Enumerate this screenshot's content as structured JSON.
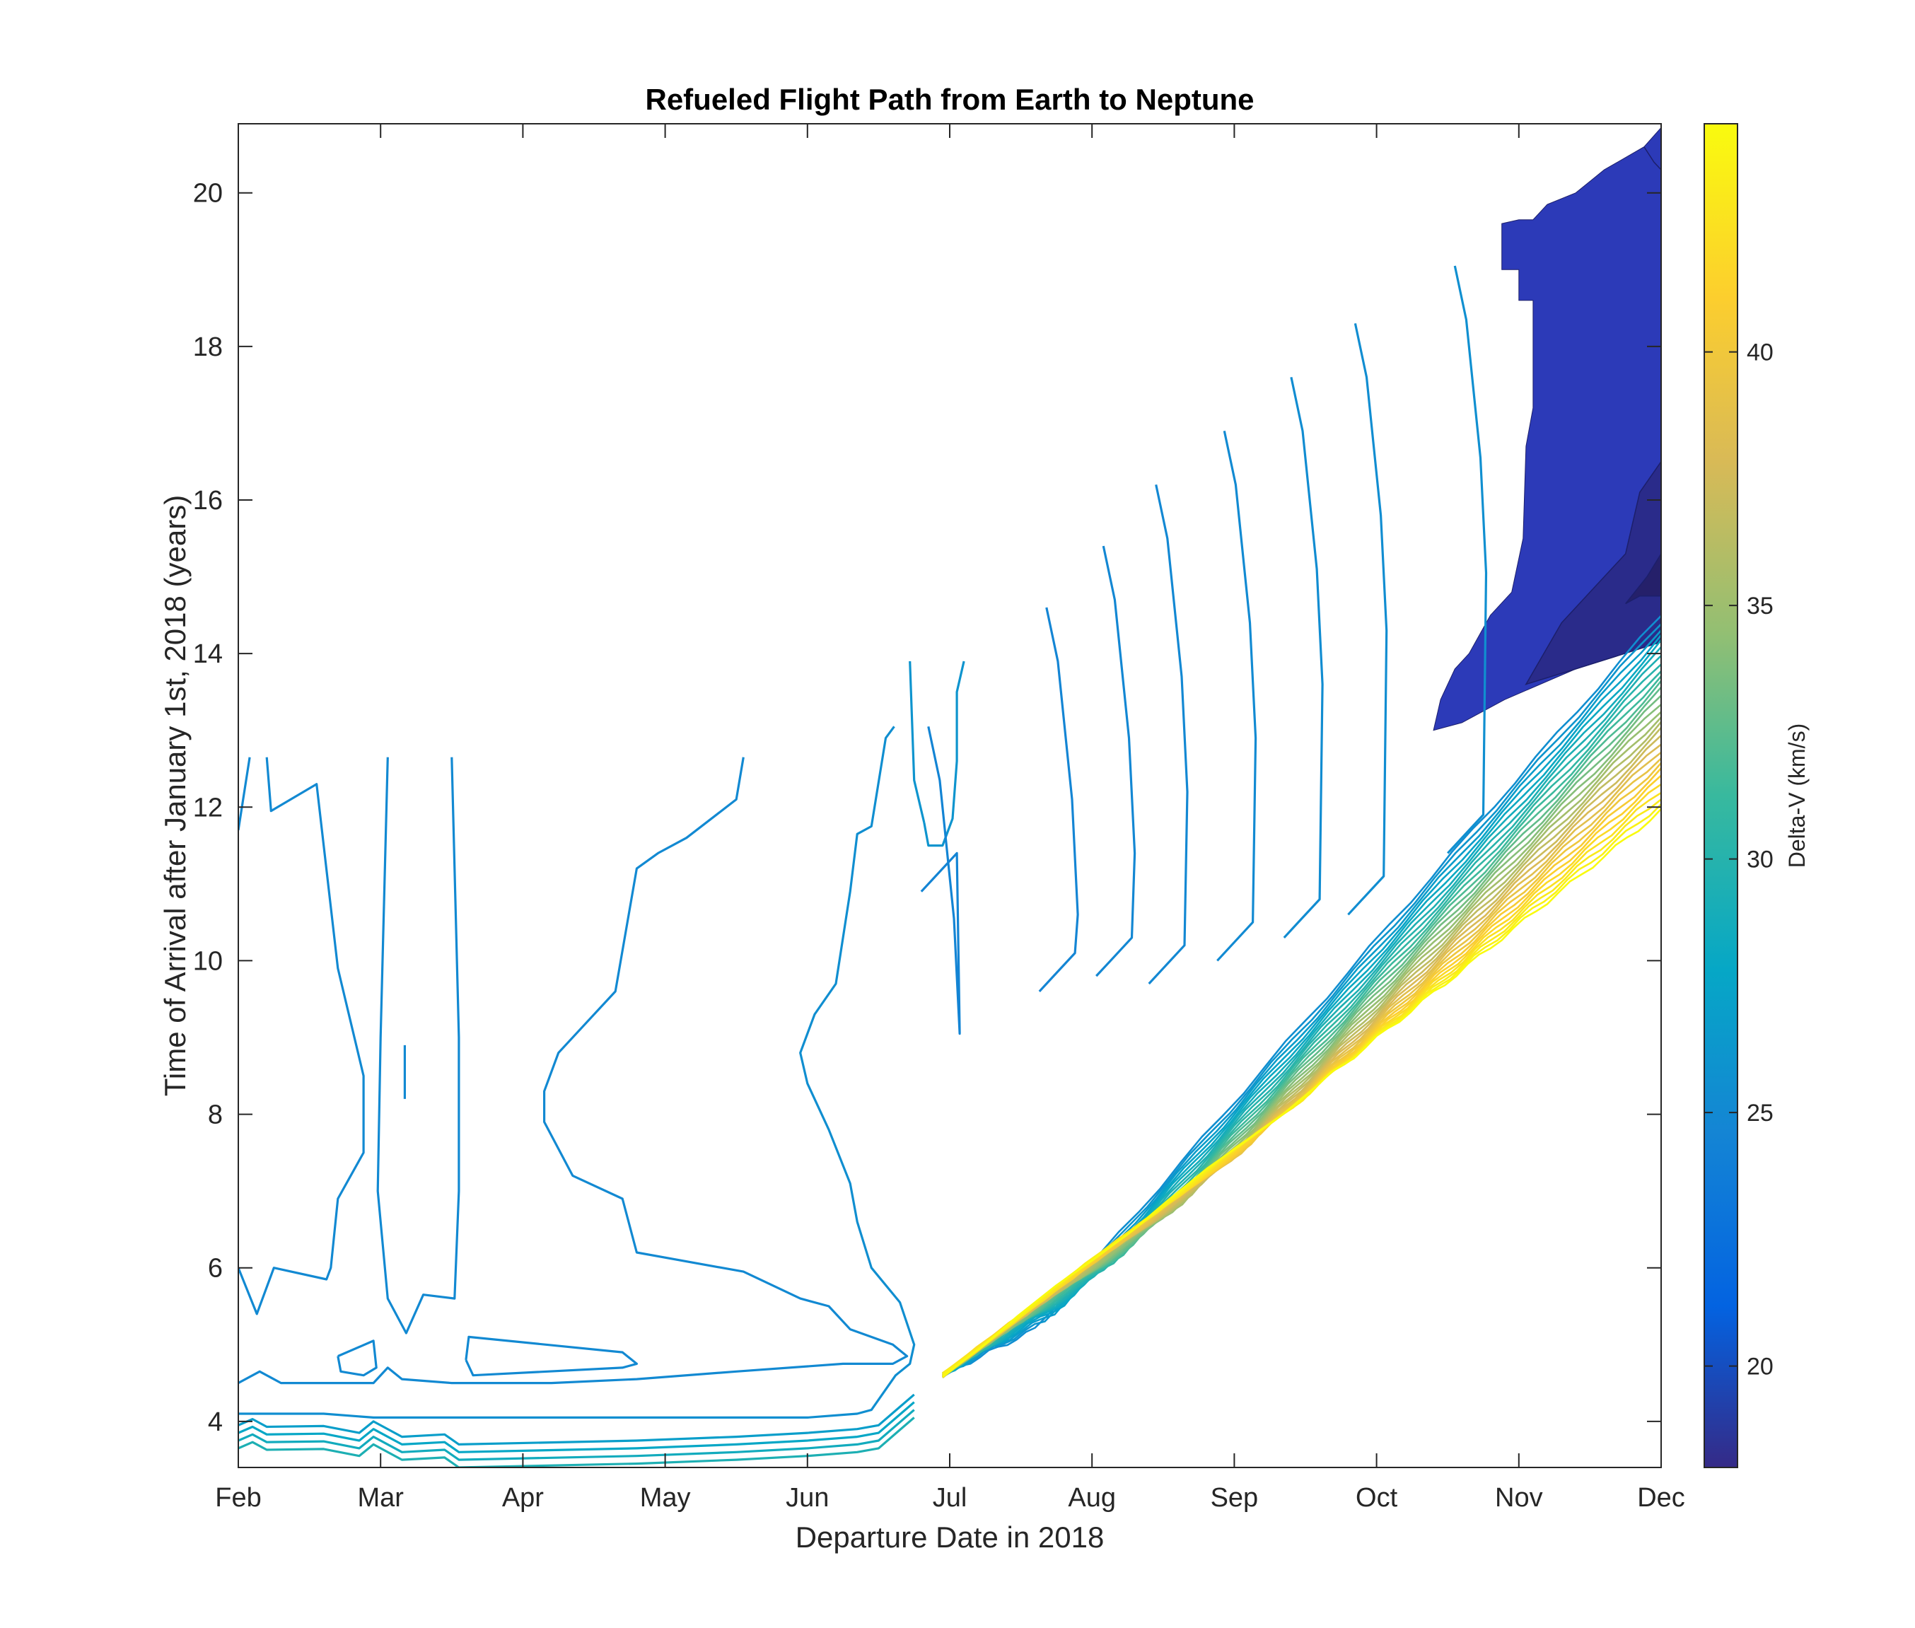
{
  "chart_data": {
    "type": "contour",
    "title": "Refueled Flight Path from Earth to Neptune",
    "xlabel": "Departure Date in 2018",
    "ylabel": "Time of Arrival after January 1st, 2018 (years)",
    "x_ticks": [
      "Feb",
      "Mar",
      "Apr",
      "May",
      "Jun",
      "Jul",
      "Aug",
      "Sep",
      "Oct",
      "Nov",
      "Dec"
    ],
    "y_ticks": [
      4,
      6,
      8,
      10,
      12,
      14,
      16,
      18,
      20
    ],
    "xlim": [
      "Feb",
      "Dec"
    ],
    "ylim": [
      3.4,
      20.9
    ],
    "colorbar": {
      "label": "Delta-V (km/s)",
      "ticks": [
        20,
        25,
        30,
        35,
        40
      ],
      "range": [
        18.0,
        44.5
      ],
      "colormap": "parula"
    },
    "contours": [
      {
        "level": 25.0,
        "points": [
          [
            0.0,
            11.7
          ],
          [
            0.08,
            12.65
          ]
        ]
      },
      {
        "level": 25.0,
        "points": [
          [
            0.2,
            12.65
          ],
          [
            0.23,
            11.95
          ],
          [
            0.55,
            12.3
          ],
          [
            0.7,
            9.9
          ],
          [
            0.88,
            8.5
          ],
          [
            0.88,
            7.5
          ],
          [
            0.7,
            6.9
          ],
          [
            0.65,
            6.0
          ],
          [
            0.62,
            5.85
          ],
          [
            0.25,
            6.0
          ],
          [
            0.13,
            5.4
          ],
          [
            0.0,
            6.0
          ]
        ]
      },
      {
        "level": 25.0,
        "points": [
          [
            1.05,
            12.65
          ],
          [
            1.0,
            9.0
          ],
          [
            0.98,
            7.0
          ],
          [
            1.05,
            5.6
          ],
          [
            1.18,
            5.15
          ],
          [
            1.3,
            5.65
          ],
          [
            1.52,
            5.6
          ],
          [
            1.55,
            7.0
          ],
          [
            1.55,
            9.0
          ],
          [
            1.5,
            12.65
          ]
        ]
      },
      {
        "level": 25.0,
        "points": [
          [
            1.17,
            8.9
          ],
          [
            1.17,
            8.2
          ]
        ]
      },
      {
        "level": 25.0,
        "points": [
          [
            0.7,
            4.85
          ],
          [
            0.95,
            5.05
          ],
          [
            0.97,
            4.7
          ],
          [
            0.88,
            4.6
          ],
          [
            0.72,
            4.65
          ],
          [
            0.7,
            4.85
          ]
        ]
      },
      {
        "level": 25.0,
        "points": [
          [
            1.6,
            4.8
          ],
          [
            1.62,
            5.1
          ],
          [
            2.7,
            4.9
          ],
          [
            2.8,
            4.75
          ],
          [
            2.7,
            4.7
          ],
          [
            1.65,
            4.6
          ],
          [
            1.6,
            4.8
          ]
        ]
      },
      {
        "level": 25.0,
        "points": [
          [
            3.55,
            12.65
          ],
          [
            3.5,
            12.1
          ],
          [
            3.15,
            11.6
          ],
          [
            2.95,
            11.4
          ],
          [
            2.8,
            11.2
          ],
          [
            2.65,
            9.6
          ],
          [
            2.45,
            9.2
          ],
          [
            2.25,
            8.8
          ],
          [
            2.15,
            8.3
          ],
          [
            2.15,
            7.9
          ],
          [
            2.35,
            7.2
          ],
          [
            2.7,
            6.9
          ],
          [
            2.8,
            6.2
          ],
          [
            3.55,
            5.95
          ],
          [
            3.95,
            5.6
          ],
          [
            4.15,
            5.5
          ],
          [
            4.3,
            5.2
          ],
          [
            4.6,
            5.0
          ],
          [
            4.7,
            4.85
          ],
          [
            4.6,
            4.75
          ],
          [
            4.25,
            4.75
          ],
          [
            3.5,
            4.65
          ],
          [
            2.8,
            4.55
          ],
          [
            2.2,
            4.5
          ],
          [
            1.5,
            4.5
          ],
          [
            1.15,
            4.55
          ],
          [
            1.05,
            4.7
          ],
          [
            0.95,
            4.5
          ],
          [
            0.6,
            4.5
          ],
          [
            0.3,
            4.5
          ],
          [
            0.15,
            4.65
          ],
          [
            0.0,
            4.5
          ]
        ]
      },
      {
        "level": 25.5,
        "points": [
          [
            0.0,
            4.1
          ],
          [
            0.6,
            4.1
          ],
          [
            0.95,
            4.05
          ],
          [
            1.5,
            4.05
          ],
          [
            2.2,
            4.05
          ],
          [
            2.8,
            4.05
          ],
          [
            3.5,
            4.05
          ],
          [
            4.0,
            4.05
          ],
          [
            4.35,
            4.1
          ],
          [
            4.45,
            4.15
          ],
          [
            4.62,
            4.6
          ],
          [
            4.72,
            4.75
          ],
          [
            4.75,
            5.0
          ],
          [
            4.65,
            5.55
          ],
          [
            4.45,
            6.0
          ],
          [
            4.35,
            6.6
          ],
          [
            4.3,
            7.1
          ],
          [
            4.15,
            7.8
          ],
          [
            4.0,
            8.4
          ],
          [
            3.95,
            8.8
          ],
          [
            4.05,
            9.3
          ],
          [
            4.2,
            9.7
          ],
          [
            4.3,
            10.9
          ],
          [
            4.35,
            11.65
          ],
          [
            4.45,
            11.75
          ],
          [
            4.55,
            12.9
          ],
          [
            4.61,
            13.05
          ]
        ]
      },
      {
        "level": 26.0,
        "points": [
          [
            4.82,
            11.8
          ],
          [
            4.85,
            11.5
          ],
          [
            4.95,
            11.5
          ],
          [
            5.02,
            11.85
          ],
          [
            5.05,
            12.6
          ],
          [
            5.05,
            13.5
          ],
          [
            5.1,
            13.9
          ]
        ]
      },
      {
        "level": 26.0,
        "points": [
          [
            4.82,
            11.8
          ],
          [
            4.75,
            12.35
          ],
          [
            4.72,
            13.9
          ]
        ]
      }
    ]
  },
  "colors": {
    "dark_region": "#2c3ab8",
    "dark_region_inner": "#2a2b8a",
    "axis": "#262626"
  }
}
